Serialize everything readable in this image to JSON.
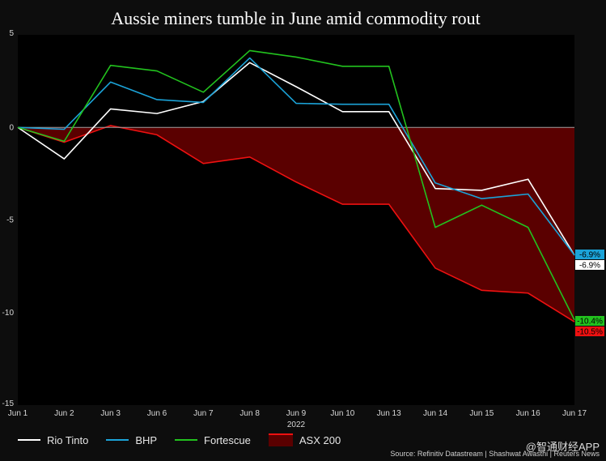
{
  "chart_data": {
    "type": "line",
    "title": "Aussie miners tumble in June amid commodity rout",
    "xlabel": "2022",
    "ylabel": "",
    "categories": [
      "Jun 1",
      "Jun 2",
      "Jun 3",
      "Jun 6",
      "Jun 7",
      "Jun 8",
      "Jun 9",
      "Jun 10",
      "Jun 13",
      "Jun 14",
      "Jun 15",
      "Jun 16",
      "Jun 17"
    ],
    "ylim": [
      -15,
      5
    ],
    "yticks": [
      5,
      0,
      -5,
      -10,
      -15
    ],
    "series": [
      {
        "name": "Rio Tinto",
        "kind": "line",
        "color": "#ffffff",
        "values": [
          0,
          -1.7,
          1.0,
          0.75,
          1.4,
          3.5,
          2.2,
          0.85,
          0.85,
          -3.3,
          -3.4,
          -2.8,
          -6.9
        ],
        "end_label": "-6.9%"
      },
      {
        "name": "BHP",
        "kind": "line",
        "color": "#1ba3d8",
        "values": [
          0,
          -0.1,
          2.45,
          1.5,
          1.35,
          3.75,
          1.3,
          1.25,
          1.25,
          -3.0,
          -3.85,
          -3.6,
          -6.9
        ],
        "end_label": "-6.9%"
      },
      {
        "name": "Fortescue",
        "kind": "line",
        "color": "#22c21e",
        "values": [
          0,
          -0.75,
          3.35,
          3.05,
          1.9,
          4.15,
          3.8,
          3.3,
          3.3,
          -5.4,
          -4.2,
          -5.4,
          -10.4
        ],
        "end_label": "-10.4%"
      },
      {
        "name": "ASX 200",
        "kind": "area",
        "color": "#ee1111",
        "fill": "#5a0000",
        "values": [
          0,
          -0.8,
          0.1,
          -0.4,
          -1.95,
          -1.6,
          -2.95,
          -4.15,
          -4.15,
          -7.6,
          -8.8,
          -8.95,
          -10.5
        ],
        "end_label": "-10.5%"
      }
    ],
    "zero_line": true,
    "grid": false,
    "legend_position": "bottom-left"
  },
  "source_note": "Source: Refinitiv Datastream | Shashwat Awasthi | Reuters News",
  "watermark": "@智通财经APP"
}
